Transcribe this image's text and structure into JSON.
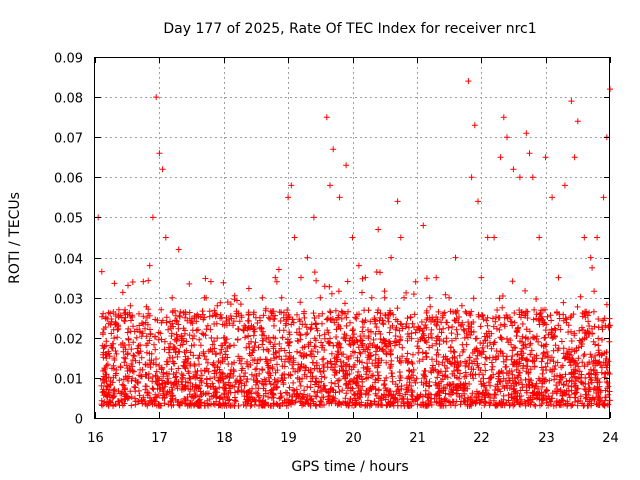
{
  "chart_data": {
    "type": "scatter",
    "title": "Day 177 of 2025, Rate Of TEC Index for receiver nrc1",
    "xlabel": "GPS time / hours",
    "ylabel": "ROTI / TECUs",
    "xlim": [
      16,
      24
    ],
    "ylim": [
      0,
      0.09
    ],
    "grid": true,
    "marker": "plus",
    "color": "#ff0000",
    "xticks": [
      "16",
      "17",
      "18",
      "19",
      "20",
      "21",
      "22",
      "23",
      "24"
    ],
    "yticks": [
      "0",
      "0.01",
      "0.02",
      "0.03",
      "0.04",
      "0.05",
      "0.06",
      "0.07",
      "0.08",
      "0.09"
    ],
    "series": [
      {
        "name": "ROTI",
        "x": [
          16.05,
          16.15,
          16.25,
          16.35,
          16.45,
          16.55,
          16.65,
          16.75,
          16.85,
          16.9,
          16.95,
          17.0,
          17.05,
          17.1,
          17.2,
          17.3,
          17.4,
          17.5,
          17.6,
          17.7,
          17.8,
          17.9,
          18.0,
          18.1,
          18.2,
          18.3,
          18.4,
          18.5,
          18.6,
          18.7,
          18.8,
          18.9,
          19.0,
          19.05,
          19.1,
          19.2,
          19.3,
          19.4,
          19.5,
          19.6,
          19.65,
          19.7,
          19.8,
          19.9,
          20.0,
          20.1,
          20.2,
          20.3,
          20.4,
          20.5,
          20.6,
          20.7,
          20.75,
          20.8,
          20.9,
          21.0,
          21.1,
          21.2,
          21.3,
          21.4,
          21.5,
          21.6,
          21.7,
          21.8,
          21.85,
          21.9,
          21.95,
          22.0,
          22.1,
          22.2,
          22.3,
          22.35,
          22.4,
          22.5,
          22.6,
          22.7,
          22.75,
          22.8,
          22.9,
          23.0,
          23.1,
          23.2,
          23.3,
          23.4,
          23.45,
          23.5,
          23.6,
          23.7,
          23.8,
          23.9,
          23.95,
          24.0,
          16.1,
          16.3,
          16.5,
          16.7,
          16.95,
          17.15,
          17.35,
          17.55,
          17.75,
          17.95,
          18.15,
          18.35,
          18.55,
          18.75,
          18.95,
          19.15,
          19.35,
          19.55,
          19.75,
          19.95,
          20.15,
          20.35,
          20.55,
          20.75,
          20.95,
          21.15,
          21.35,
          21.55,
          21.75,
          21.95,
          22.15,
          22.35,
          22.55,
          22.75,
          22.95,
          23.15,
          23.35,
          23.55,
          23.75,
          23.95
        ],
        "y": [
          0.05,
          0.012,
          0.018,
          0.022,
          0.015,
          0.028,
          0.02,
          0.034,
          0.038,
          0.05,
          0.08,
          0.066,
          0.062,
          0.045,
          0.03,
          0.042,
          0.025,
          0.018,
          0.022,
          0.03,
          0.034,
          0.028,
          0.02,
          0.018,
          0.026,
          0.022,
          0.016,
          0.025,
          0.03,
          0.02,
          0.035,
          0.03,
          0.055,
          0.058,
          0.045,
          0.035,
          0.04,
          0.05,
          0.03,
          0.075,
          0.058,
          0.067,
          0.055,
          0.063,
          0.045,
          0.038,
          0.035,
          0.03,
          0.047,
          0.03,
          0.04,
          0.054,
          0.045,
          0.03,
          0.025,
          0.022,
          0.048,
          0.03,
          0.035,
          0.025,
          0.03,
          0.04,
          0.028,
          0.084,
          0.06,
          0.073,
          0.054,
          0.035,
          0.045,
          0.045,
          0.065,
          0.075,
          0.07,
          0.062,
          0.06,
          0.071,
          0.066,
          0.06,
          0.045,
          0.065,
          0.055,
          0.035,
          0.058,
          0.079,
          0.065,
          0.074,
          0.045,
          0.04,
          0.045,
          0.055,
          0.07,
          0.082,
          0.008,
          0.006,
          0.01,
          0.012,
          0.009,
          0.011,
          0.007,
          0.013,
          0.008,
          0.01,
          0.012,
          0.009,
          0.011,
          0.007,
          0.014,
          0.01,
          0.012,
          0.008,
          0.015,
          0.011,
          0.009,
          0.013,
          0.007,
          0.01,
          0.012,
          0.009,
          0.008,
          0.011,
          0.013,
          0.006,
          0.01,
          0.014,
          0.012,
          0.009,
          0.011,
          0.013,
          0.008,
          0.01,
          0.012,
          0.009
        ]
      }
    ]
  }
}
